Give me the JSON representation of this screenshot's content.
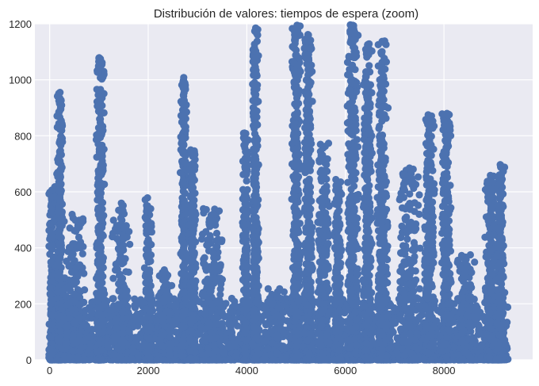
{
  "chart_data": {
    "type": "scatter",
    "title": "Distribución de valores: tiempos de espera (zoom)",
    "xlabel": "",
    "ylabel": "",
    "xlim": [
      -300,
      9800
    ],
    "ylim": [
      0,
      1200
    ],
    "x_ticks": [
      0,
      2000,
      4000,
      6000,
      8000
    ],
    "y_ticks": [
      0,
      200,
      400,
      600,
      800,
      1000,
      1200
    ],
    "grid": true,
    "colors": {
      "background": "#eaeaf2",
      "grid": "#ffffff",
      "marker": "#4c72b0",
      "text": "#262626"
    },
    "clusters": [
      {
        "center": 60,
        "spread": 80,
        "peak": 620
      },
      {
        "center": 210,
        "spread": 70,
        "peak": 960
      },
      {
        "center": 500,
        "spread": 250,
        "peak": 520
      },
      {
        "center": 1030,
        "spread": 90,
        "peak": 1080
      },
      {
        "center": 1450,
        "spread": 200,
        "peak": 560
      },
      {
        "center": 2000,
        "spread": 80,
        "peak": 580
      },
      {
        "center": 2350,
        "spread": 200,
        "peak": 330
      },
      {
        "center": 2720,
        "spread": 70,
        "peak": 1010
      },
      {
        "center": 2900,
        "spread": 80,
        "peak": 750
      },
      {
        "center": 3300,
        "spread": 250,
        "peak": 540
      },
      {
        "center": 3980,
        "spread": 70,
        "peak": 810
      },
      {
        "center": 4180,
        "spread": 70,
        "peak": 1190
      },
      {
        "center": 4550,
        "spread": 250,
        "peak": 260
      },
      {
        "center": 5000,
        "spread": 90,
        "peak": 1200
      },
      {
        "center": 5250,
        "spread": 90,
        "peak": 1170
      },
      {
        "center": 5550,
        "spread": 150,
        "peak": 780
      },
      {
        "center": 5850,
        "spread": 80,
        "peak": 650
      },
      {
        "center": 6150,
        "spread": 120,
        "peak": 1200
      },
      {
        "center": 6450,
        "spread": 100,
        "peak": 1130
      },
      {
        "center": 6750,
        "spread": 120,
        "peak": 1140
      },
      {
        "center": 7300,
        "spread": 250,
        "peak": 690
      },
      {
        "center": 7700,
        "spread": 120,
        "peak": 880
      },
      {
        "center": 8050,
        "spread": 100,
        "peak": 880
      },
      {
        "center": 8450,
        "spread": 200,
        "peak": 380
      },
      {
        "center": 8950,
        "spread": 120,
        "peak": 660
      },
      {
        "center": 9150,
        "spread": 100,
        "peak": 700
      }
    ],
    "notable_points": [
      {
        "x": 210,
        "y": 955
      },
      {
        "x": 1030,
        "y": 1075
      },
      {
        "x": 1030,
        "y": 1040
      },
      {
        "x": 2720,
        "y": 1008
      },
      {
        "x": 4180,
        "y": 1185
      },
      {
        "x": 5020,
        "y": 1195
      },
      {
        "x": 5250,
        "y": 1160
      },
      {
        "x": 4980,
        "y": 1130
      },
      {
        "x": 6150,
        "y": 1195
      },
      {
        "x": 6450,
        "y": 1125
      },
      {
        "x": 6750,
        "y": 1135
      },
      {
        "x": 7300,
        "y": 685
      },
      {
        "x": 7680,
        "y": 875
      },
      {
        "x": 8080,
        "y": 875
      },
      {
        "x": 3980,
        "y": 808
      },
      {
        "x": 9150,
        "y": 695
      }
    ]
  }
}
